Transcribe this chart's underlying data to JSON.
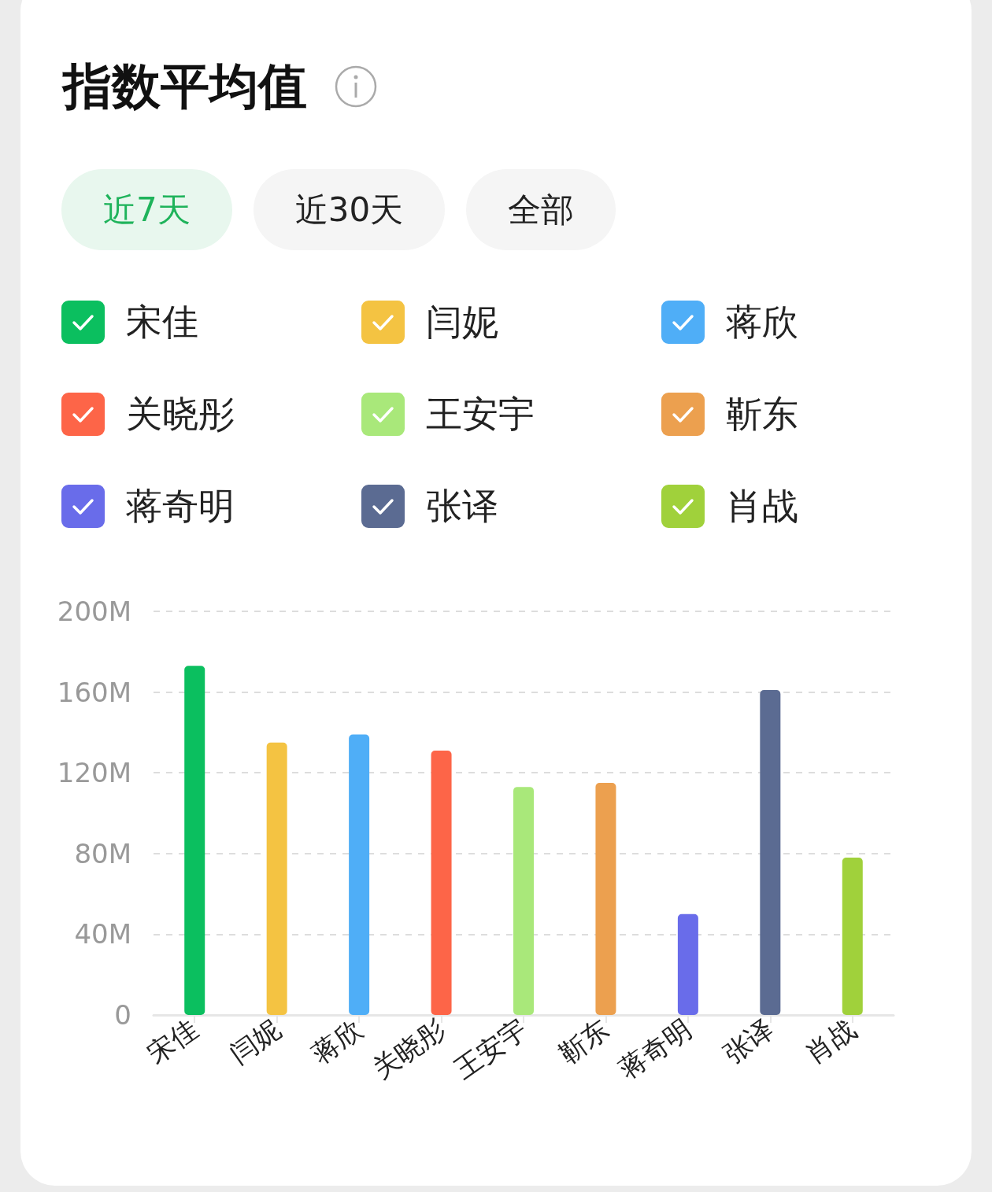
{
  "chart_data": {
    "type": "bar",
    "title": "指数平均值",
    "annotations": [
      "近7天",
      "近30天",
      "全部"
    ],
    "categories": [
      "宋佳",
      "闫妮",
      "蒋欣",
      "关晓彤",
      "王安宇",
      "靳东",
      "蒋奇明",
      "张译",
      "肖战"
    ],
    "values": [
      173,
      135,
      139,
      131,
      113,
      115,
      50,
      161,
      78
    ],
    "colors": [
      "#0bbf5f",
      "#f4c342",
      "#4faef7",
      "#fd6548",
      "#a9e87a",
      "#eca04f",
      "#696cea",
      "#5b6b92",
      "#a0d13b"
    ],
    "ylim": [
      0,
      200
    ],
    "yticks": [
      0,
      {
        "value": 40,
        "label": "40M"
      },
      {
        "value": 80,
        "label": "80M"
      },
      {
        "value": 120,
        "label": "120M"
      },
      {
        "value": 160,
        "label": "160M"
      },
      {
        "value": 200,
        "label": "200M"
      }
    ],
    "grid": "y"
  }
}
